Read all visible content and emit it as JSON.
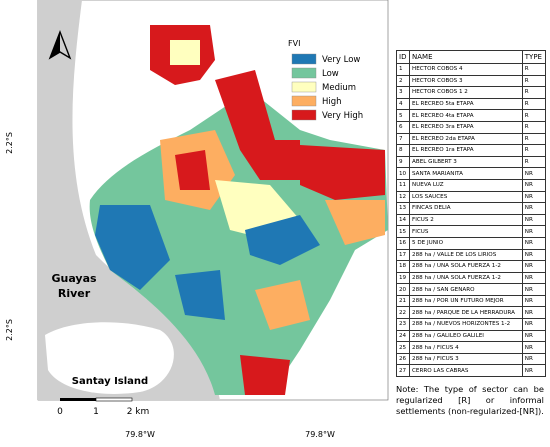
{
  "map": {
    "legend": {
      "title": "FVI",
      "items": [
        {
          "label": "Very Low",
          "color": "#1f78b4"
        },
        {
          "label": "Low",
          "color": "#74c69d"
        },
        {
          "label": "Medium",
          "color": "#ffffbf"
        },
        {
          "label": "High",
          "color": "#fdae61"
        },
        {
          "label": "Very High",
          "color": "#d7191c"
        }
      ]
    },
    "labels": [
      "Guayas",
      "River",
      "Santay Island"
    ],
    "scale": [
      "0",
      "1",
      "2 km"
    ],
    "lat_labels": [
      "2.2°S",
      "2.2°S"
    ],
    "lon_labels": [
      "79.8°W",
      "79.8°W"
    ]
  },
  "table": {
    "header": [
      "ID",
      "NAME",
      "TYPE"
    ],
    "rows": [
      [
        1,
        "HECTOR COBOS 4",
        "R"
      ],
      [
        2,
        "HECTOR COBOS 3",
        "R"
      ],
      [
        3,
        "HECTOR COBOS 1 2",
        "R"
      ],
      [
        4,
        "EL RECREO 5ta ETAPA",
        "R"
      ],
      [
        5,
        "EL RECREO 4ta ETAPA",
        "R"
      ],
      [
        6,
        "EL RECREO 3ra ETAPA",
        "R"
      ],
      [
        7,
        "EL RECREO 2da ETAPA",
        "R"
      ],
      [
        8,
        "EL RECREO 1ra ETAPA",
        "R"
      ],
      [
        9,
        "ABEL GILBERT 3",
        "R"
      ],
      [
        10,
        "SANTA MARIANITA",
        "NR"
      ],
      [
        11,
        "NUEVA LUZ",
        "NR"
      ],
      [
        12,
        "LOS SAUCES",
        "NR"
      ],
      [
        13,
        "FINCAS DELIA",
        "NR"
      ],
      [
        14,
        "FICUS 2",
        "NR"
      ],
      [
        15,
        "FICUS",
        "NR"
      ],
      [
        16,
        "5 DE JUNIO",
        "NR"
      ],
      [
        17,
        "288 ha / VALLE DE LOS LIRIOS",
        "NR"
      ],
      [
        18,
        "288 ha / UNA SOLA FUERZA 1-2",
        "NR"
      ],
      [
        19,
        "288 ha / UNA SOLA FUERZA 1-2",
        "NR"
      ],
      [
        20,
        "288 ha / SAN GENARO",
        "NR"
      ],
      [
        21,
        "288 ha / POR UN FUTURO MEJOR",
        "NR"
      ],
      [
        22,
        "288 ha / PARQUE DE LA HERRADURA",
        "NR"
      ],
      [
        23,
        "288 ha / NUEVOS HORIZONTES 1-2",
        "NR"
      ],
      [
        24,
        "288 ha / GALILEO GALILEI",
        "NR"
      ],
      [
        25,
        "288 ha / FICUS 4",
        "NR"
      ],
      [
        26,
        "288 ha / FICUS 3",
        "NR"
      ],
      [
        27,
        "CERRO LAS CABRAS",
        "NR"
      ]
    ]
  },
  "note": "Note: The type of sector can be regularized [R] or informal settlements (non-regularized-[NR])."
}
